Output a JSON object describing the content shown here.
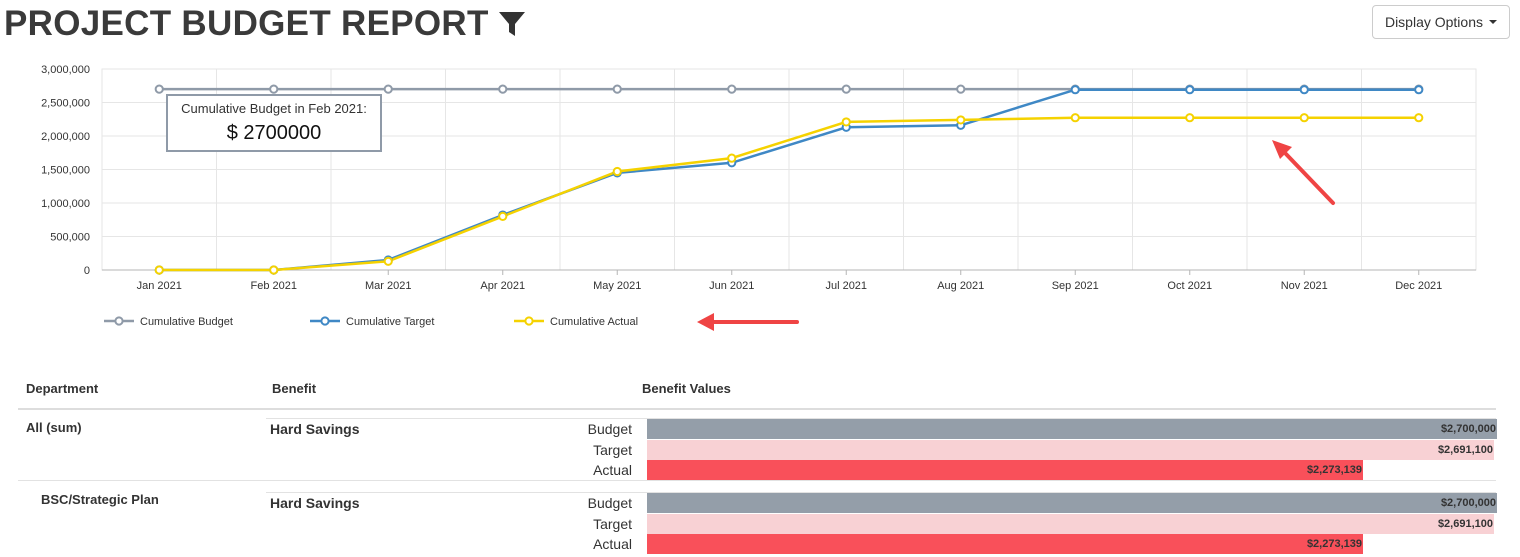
{
  "header": {
    "title": "PROJECT BUDGET REPORT",
    "filter_icon": "filter-icon"
  },
  "toolbar": {
    "display_options_label": "Display Options"
  },
  "colors": {
    "budget": "#8f9aa8",
    "target": "#3f88c5",
    "actual": "#f5d200",
    "bar_budget": "#949ea9",
    "bar_target": "#f8d1d4",
    "bar_actual": "#f9505a"
  },
  "chart_data": {
    "type": "line",
    "categories": [
      "Jan 2021",
      "Feb 2021",
      "Mar 2021",
      "Apr 2021",
      "May 2021",
      "Jun 2021",
      "Jul 2021",
      "Aug 2021",
      "Sep 2021",
      "Oct 2021",
      "Nov 2021",
      "Dec 2021"
    ],
    "yticks": [
      "0",
      "500,000",
      "1,000,000",
      "1,500,000",
      "2,000,000",
      "2,500,000",
      "3,000,000"
    ],
    "ylim": [
      0,
      3000000
    ],
    "grid": true,
    "legend_position": "bottom-left",
    "series": [
      {
        "name": "Cumulative Budget",
        "values": [
          2700000,
          2700000,
          2700000,
          2700000,
          2700000,
          2700000,
          2700000,
          2700000,
          2700000,
          2700000,
          2700000,
          2700000
        ]
      },
      {
        "name": "Cumulative Target",
        "values": [
          0,
          0,
          150000,
          820000,
          1450000,
          1600000,
          2130000,
          2160000,
          2691100,
          2691100,
          2691100,
          2691100
        ]
      },
      {
        "name": "Cumulative Actual",
        "values": [
          0,
          0,
          130000,
          800000,
          1470000,
          1670000,
          2210000,
          2240000,
          2273139,
          2273139,
          2273139,
          2273139
        ]
      }
    ],
    "tooltip": {
      "title": "Cumulative Budget in Feb 2021:",
      "value": "$ 2700000"
    }
  },
  "table": {
    "columns": [
      "Department",
      "Benefit",
      "Benefit Values"
    ],
    "max_value": 2700000,
    "rows": [
      {
        "department": "All (sum)",
        "benefit": "Hard Savings",
        "measures": [
          {
            "label": "Budget",
            "value": 2700000,
            "display": "$2,700,000"
          },
          {
            "label": "Target",
            "value": 2691100,
            "display": "$2,691,100"
          },
          {
            "label": "Actual",
            "value": 2273139,
            "display": "$2,273,139"
          }
        ]
      },
      {
        "department": "BSC/Strategic Plan",
        "benefit": "Hard Savings",
        "measures": [
          {
            "label": "Budget",
            "value": 2700000,
            "display": "$2,700,000"
          },
          {
            "label": "Target",
            "value": 2691100,
            "display": "$2,691,100"
          },
          {
            "label": "Actual",
            "value": 2273139,
            "display": "$2,273,139"
          }
        ]
      }
    ]
  }
}
